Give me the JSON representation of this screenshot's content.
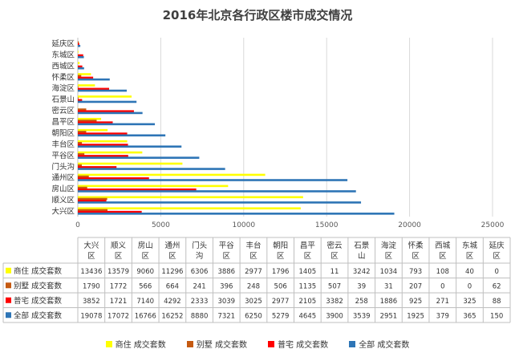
{
  "chart_data": {
    "type": "bar",
    "orientation": "horizontal",
    "title": "2016年北京各行政区楼市成交情况",
    "categories": [
      "大兴区",
      "顺义区",
      "房山区",
      "通州区",
      "门头沟",
      "平谷区",
      "丰台区",
      "朝阳区",
      "昌平区",
      "密云区",
      "石景山",
      "海淀区",
      "怀柔区",
      "西城区",
      "东城区",
      "延庆区"
    ],
    "table_headers": [
      [
        "大兴",
        "区"
      ],
      [
        "顺义",
        "区"
      ],
      [
        "房山",
        "区"
      ],
      [
        "通州",
        "区"
      ],
      [
        "门头",
        "沟"
      ],
      [
        "平谷",
        "区"
      ],
      [
        "丰台",
        "区"
      ],
      [
        "朝阳",
        "区"
      ],
      [
        "昌平",
        "区"
      ],
      [
        "密云",
        "区"
      ],
      [
        "石景",
        "山"
      ],
      [
        "海淀",
        "区"
      ],
      [
        "怀柔",
        "区"
      ],
      [
        "西城",
        "区"
      ],
      [
        "东城",
        "区"
      ],
      [
        "延庆",
        "区"
      ]
    ],
    "series": [
      {
        "name": "商住 成交套数",
        "color": "#FFFF00",
        "values": [
          13436,
          13579,
          9060,
          11296,
          6306,
          3886,
          2977,
          1796,
          1405,
          11,
          3242,
          1034,
          793,
          108,
          40,
          0
        ]
      },
      {
        "name": "别墅 成交套数",
        "color": "#C55A11",
        "values": [
          1790,
          1772,
          566,
          664,
          241,
          396,
          248,
          506,
          1135,
          507,
          39,
          31,
          207,
          0,
          0,
          62
        ]
      },
      {
        "name": "普宅 成交套数",
        "color": "#FF0000",
        "values": [
          3852,
          1721,
          7140,
          4292,
          2333,
          3039,
          3025,
          2977,
          2105,
          3382,
          258,
          1886,
          925,
          271,
          325,
          88
        ]
      },
      {
        "name": "全部 成交套数",
        "color": "#2E75B6",
        "values": [
          19078,
          17072,
          16766,
          16252,
          8880,
          7321,
          6250,
          5279,
          4645,
          3900,
          3539,
          2951,
          1925,
          379,
          365,
          150
        ]
      }
    ],
    "xlim": [
      0,
      25000
    ],
    "x_ticks": [
      "0",
      "5000",
      "10000",
      "15000",
      "20000",
      "25000"
    ],
    "grid": true,
    "legend_position": "bottom"
  }
}
